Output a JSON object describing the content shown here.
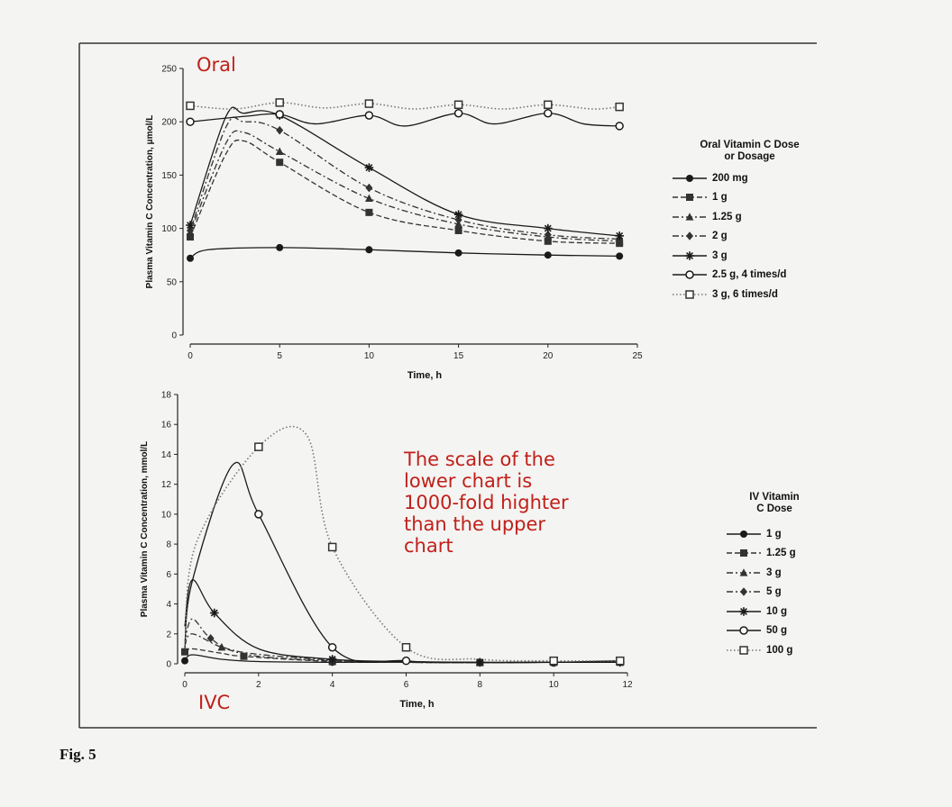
{
  "figure_label": "Fig. 5",
  "annotation": "The scale of the\nlower chart is\n1000-fold highter\nthan the upper\nchart",
  "colors": {
    "annotation": "#c0201a",
    "ink": "#1a1a1a",
    "frame": "#333333"
  },
  "chart_data": [
    {
      "type": "line",
      "panel_label": "Oral",
      "xlabel": "Time, h",
      "ylabel": "Plasma Vitamin C Concentration, μmol/L",
      "xlim": [
        0,
        25
      ],
      "ylim": [
        0,
        250
      ],
      "x_ticks": [
        0,
        5,
        10,
        15,
        20,
        25
      ],
      "y_ticks": [
        0,
        50,
        100,
        150,
        200,
        250
      ],
      "legend_title": [
        "Oral Vitamin C Dose",
        "or Dosage"
      ],
      "legend_position": "right",
      "series": [
        {
          "name": "200 mg",
          "marker": "filled-circle",
          "dash": "solid",
          "color": "#1a1a1a",
          "x": [
            0,
            1,
            5,
            10,
            15,
            20,
            24
          ],
          "y": [
            72,
            80,
            82,
            80,
            77,
            75,
            74
          ]
        },
        {
          "name": "1 g",
          "marker": "filled-square",
          "dash": "dash",
          "color": "#333333",
          "x": [
            0,
            2,
            3,
            5,
            10,
            15,
            20,
            24
          ],
          "y": [
            92,
            170,
            182,
            162,
            115,
            98,
            88,
            86
          ]
        },
        {
          "name": "1.25 g",
          "marker": "filled-triangle",
          "dash": "dashdot",
          "color": "#333333",
          "x": [
            0,
            2,
            3,
            5,
            10,
            15,
            20,
            24
          ],
          "y": [
            96,
            180,
            190,
            172,
            128,
            104,
            92,
            88
          ]
        },
        {
          "name": "2 g",
          "marker": "filled-diamond",
          "dash": "dashdot",
          "color": "#333333",
          "x": [
            0,
            2,
            3,
            5,
            10,
            15,
            20,
            24
          ],
          "y": [
            98,
            195,
            200,
            192,
            138,
            108,
            94,
            90
          ]
        },
        {
          "name": "3 g",
          "marker": "star",
          "dash": "solid",
          "color": "#1a1a1a",
          "x": [
            0,
            2,
            3,
            5,
            10,
            15,
            20,
            24
          ],
          "y": [
            103,
            205,
            208,
            206,
            157,
            113,
            100,
            93
          ]
        },
        {
          "name": "2.5 g, 4 times/d",
          "marker": "open-circle",
          "dash": "solid",
          "color": "#1a1a1a",
          "x": [
            0,
            3,
            5,
            7,
            10,
            12,
            15,
            17,
            20,
            22,
            24
          ],
          "y": [
            200,
            205,
            207,
            198,
            206,
            196,
            208,
            198,
            208,
            198,
            196
          ]
        },
        {
          "name": "3 g, 6 times/d",
          "marker": "open-square",
          "dash": "dot",
          "color": "#777777",
          "x": [
            0,
            2.5,
            5,
            7.5,
            10,
            12.5,
            15,
            17.5,
            20,
            22.5,
            24
          ],
          "y": [
            215,
            212,
            218,
            213,
            217,
            212,
            216,
            212,
            216,
            212,
            214
          ]
        }
      ]
    },
    {
      "type": "line",
      "panel_label": "IVC",
      "xlabel": "Time, h",
      "ylabel": "Plasma Vitamin C Concentration, mmol/L",
      "xlim": [
        0,
        12
      ],
      "ylim": [
        0,
        18
      ],
      "x_ticks": [
        0,
        2,
        4,
        6,
        8,
        10,
        12
      ],
      "y_ticks": [
        0,
        2,
        4,
        6,
        8,
        10,
        12,
        14,
        16,
        18
      ],
      "legend_title": [
        "IV Vitamin",
        "C Dose"
      ],
      "legend_position": "right",
      "series": [
        {
          "name": "1 g",
          "marker": "filled-circle",
          "dash": "solid",
          "color": "#1a1a1a",
          "x": [
            0,
            0.2,
            1,
            2,
            4,
            6,
            8,
            10,
            11.8
          ],
          "y": [
            0.2,
            0.6,
            0.3,
            0.15,
            0.1,
            0.1,
            0.08,
            0.1,
            0.1
          ]
        },
        {
          "name": "1.25 g",
          "marker": "filled-square",
          "dash": "dash",
          "color": "#333333",
          "x": [
            0,
            0.2,
            1,
            1.6,
            4,
            6,
            8,
            10,
            11.8
          ],
          "y": [
            0.8,
            1.0,
            0.7,
            0.5,
            0.15,
            0.1,
            0.08,
            0.1,
            0.1
          ]
        },
        {
          "name": "3 g",
          "marker": "filled-triangle",
          "dash": "dashdot",
          "color": "#333333",
          "x": [
            0,
            0.2,
            1,
            2,
            4,
            6,
            8,
            10,
            11.8
          ],
          "y": [
            1.2,
            2.0,
            1.1,
            0.5,
            0.2,
            0.1,
            0.08,
            0.1,
            0.1
          ]
        },
        {
          "name": "5 g",
          "marker": "filled-diamond",
          "dash": "dashdot",
          "color": "#333333",
          "x": [
            0,
            0.2,
            0.7,
            1.5,
            4,
            6,
            8,
            10,
            11.8
          ],
          "y": [
            1.5,
            3.0,
            1.7,
            0.8,
            0.25,
            0.1,
            0.08,
            0.1,
            0.1
          ]
        },
        {
          "name": "10 g",
          "marker": "star",
          "dash": "solid",
          "color": "#1a1a1a",
          "x": [
            0,
            0.2,
            0.8,
            2,
            4,
            6,
            8,
            10,
            11.8
          ],
          "y": [
            2.5,
            5.6,
            3.4,
            1.0,
            0.3,
            0.15,
            0.1,
            0.1,
            0.1
          ]
        },
        {
          "name": "50 g",
          "marker": "open-circle",
          "dash": "solid",
          "color": "#1a1a1a",
          "x": [
            0,
            0.2,
            1.3,
            2,
            4,
            6,
            8,
            10,
            11.8
          ],
          "y": [
            1,
            5.5,
            13.3,
            10.0,
            1.1,
            0.2,
            0.1,
            0.1,
            0.2
          ]
        },
        {
          "name": "100 g",
          "marker": "open-square",
          "dash": "dot",
          "color": "#777777",
          "x": [
            0,
            0.3,
            2,
            3.3,
            4,
            6,
            8,
            10,
            11.8
          ],
          "y": [
            1,
            8,
            14.5,
            15.3,
            7.8,
            1.1,
            0.3,
            0.2,
            0.2
          ]
        }
      ]
    }
  ]
}
